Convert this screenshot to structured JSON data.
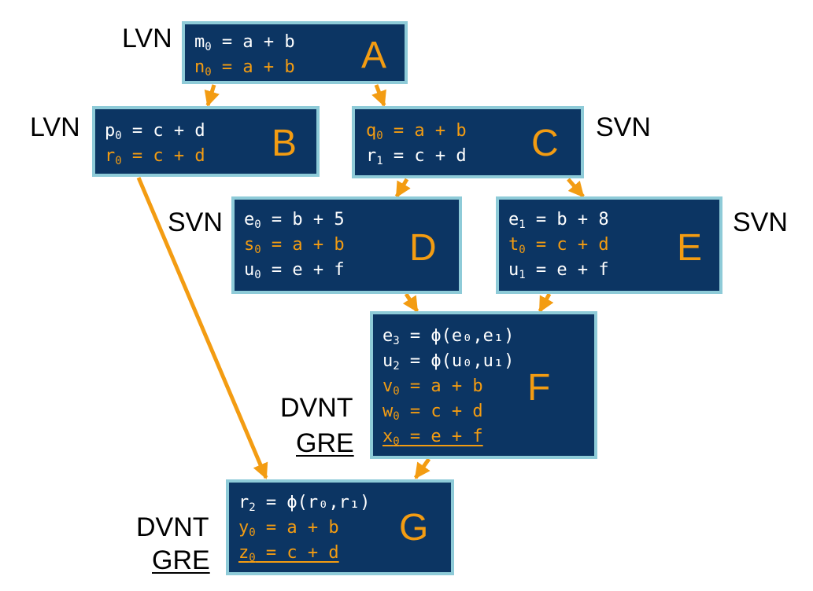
{
  "colors": {
    "block_fill": "#0c3563",
    "block_border": "#8ecbd8",
    "highlight": "#f39c12",
    "text": "#ffffff"
  },
  "blocks": {
    "A": {
      "name": "A",
      "lines": [
        {
          "v": "m",
          "s": "0",
          "rest": " = a + b",
          "hl": false
        },
        {
          "v": "n",
          "s": "0",
          "rest": " = a + b",
          "hl": true
        }
      ]
    },
    "B": {
      "name": "B",
      "lines": [
        {
          "v": "p",
          "s": "0",
          "rest": " = c + d",
          "hl": false
        },
        {
          "v": "r",
          "s": "0",
          "rest": " = c + d",
          "hl": true
        }
      ]
    },
    "C": {
      "name": "C",
      "lines": [
        {
          "v": "q",
          "s": "0",
          "rest": " = a + b",
          "hl": true
        },
        {
          "v": "r",
          "s": "1",
          "rest": " = c + d",
          "hl": false
        }
      ]
    },
    "D": {
      "name": "D",
      "lines": [
        {
          "v": "e",
          "s": "0",
          "rest": " = b + 5",
          "hl": false
        },
        {
          "v": "s",
          "s": "0",
          "rest": " = a + b",
          "hl": true
        },
        {
          "v": "u",
          "s": "0",
          "rest": " = e + f",
          "hl": false
        }
      ]
    },
    "E": {
      "name": "E",
      "lines": [
        {
          "v": "e",
          "s": "1",
          "rest": " = b + 8",
          "hl": false
        },
        {
          "v": "t",
          "s": "0",
          "rest": " = c + d",
          "hl": true
        },
        {
          "v": "u",
          "s": "1",
          "rest": " = e + f",
          "hl": false
        }
      ]
    },
    "F": {
      "name": "F",
      "lines": [
        {
          "v": "e",
          "s": "3",
          "rest": " = ϕ(e₀,e₁)",
          "hl": false
        },
        {
          "v": "u",
          "s": "2",
          "rest": " = ϕ(u₀,u₁)",
          "hl": false
        },
        {
          "v": "v",
          "s": "0",
          "rest": " = a + b",
          "hl": true
        },
        {
          "v": "w",
          "s": "0",
          "rest": " = c + d",
          "hl": true
        },
        {
          "v": "x",
          "s": "0",
          "rest": " = e + f",
          "hl": true,
          "underline": true
        }
      ]
    },
    "G": {
      "name": "G",
      "lines": [
        {
          "v": "r",
          "s": "2",
          "rest": " = ϕ(r₀,r₁)",
          "hl": false
        },
        {
          "v": "y",
          "s": "0",
          "rest": " = a + b",
          "hl": true
        },
        {
          "v": "z",
          "s": "0",
          "rest": " = c + d",
          "hl": true,
          "underline": true
        }
      ]
    }
  },
  "labels": {
    "A": "LVN",
    "B": "LVN",
    "C": "SVN",
    "D": "SVN",
    "E": "SVN",
    "F_1": "DVNT",
    "F_2": "GRE",
    "G_1": "DVNT",
    "G_2": "GRE"
  },
  "edges": [
    {
      "from": "A",
      "to": "B"
    },
    {
      "from": "A",
      "to": "C"
    },
    {
      "from": "C",
      "to": "D"
    },
    {
      "from": "C",
      "to": "E"
    },
    {
      "from": "D",
      "to": "F"
    },
    {
      "from": "E",
      "to": "F"
    },
    {
      "from": "B",
      "to": "G"
    },
    {
      "from": "F",
      "to": "G"
    }
  ]
}
